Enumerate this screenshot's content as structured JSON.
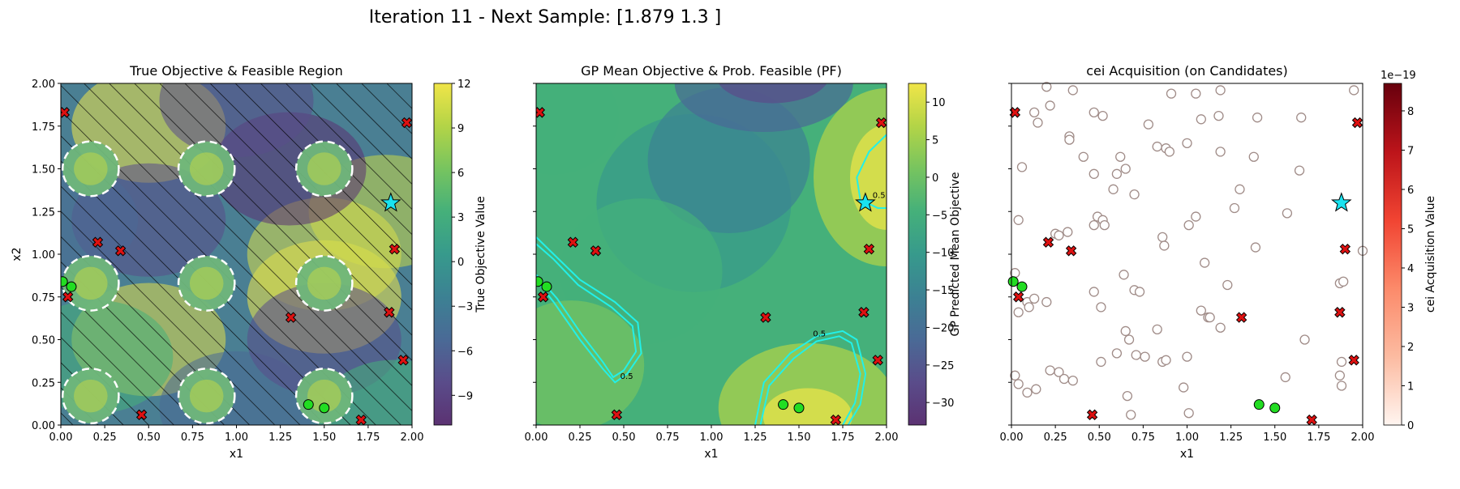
{
  "figure_title": "Iteration 11 - Next Sample: [1.879 1.3  ]",
  "colors": {
    "feasible_pt": "#22dd22",
    "infeasible_pt": "#dd1111",
    "next_sample": "#19e3f0",
    "candidate_edge": "#a08c88",
    "pf_contour": "#22f0e8",
    "hatch": "#000000"
  },
  "chart_data": [
    {
      "type": "heatmap",
      "title": "True Objective & Feasible Region",
      "xlabel": "x1",
      "ylabel": "x2",
      "xlim": [
        0,
        2
      ],
      "ylim": [
        0,
        2
      ],
      "xticks": [
        "0.00",
        "0.25",
        "0.50",
        "0.75",
        "1.00",
        "1.25",
        "1.50",
        "1.75",
        "2.00"
      ],
      "yticks": [
        "0.00",
        "0.25",
        "0.50",
        "0.75",
        "1.00",
        "1.25",
        "1.50",
        "1.75",
        "2.00"
      ],
      "colorbar": {
        "label": "True Objective Value",
        "range": [
          -11,
          12
        ],
        "ticks": [
          "12",
          "9",
          "6",
          "3",
          "0",
          "−3",
          "−6",
          "−9"
        ],
        "tick_values": [
          12,
          9,
          6,
          3,
          0,
          -3,
          -6,
          -9
        ],
        "colormap": "viridis"
      },
      "feasible_regions": [
        [
          0.17,
          1.5
        ],
        [
          0.83,
          1.5
        ],
        [
          1.5,
          1.5
        ],
        [
          0.17,
          0.83
        ],
        [
          0.83,
          0.83
        ],
        [
          1.5,
          0.83
        ],
        [
          0.17,
          0.17
        ],
        [
          0.83,
          0.17
        ],
        [
          1.5,
          0.17
        ]
      ],
      "feasible_radius": 0.16,
      "infeasible_hatched": true
    },
    {
      "type": "heatmap",
      "title": "GP Mean Objective & Prob. Feasible (PF)",
      "xlabel": "x1",
      "xlim": [
        0,
        2
      ],
      "ylim": [
        0,
        2
      ],
      "xticks": [
        "0.00",
        "0.25",
        "0.50",
        "0.75",
        "1.00",
        "1.25",
        "1.50",
        "1.75",
        "2.00"
      ],
      "colorbar": {
        "label": "GP Predicted Mean Objective",
        "range": [
          -33,
          12.5
        ],
        "ticks": [
          "10",
          "5",
          "0",
          "−5",
          "−10",
          "−15",
          "−20",
          "−25",
          "−30"
        ],
        "tick_values": [
          10,
          5,
          0,
          -5,
          -10,
          -15,
          -20,
          -25,
          -30
        ],
        "colormap": "viridis"
      },
      "pf_contour_labels": [
        "0.5",
        "0.5",
        "0.5"
      ]
    },
    {
      "type": "scatter",
      "title": "cei Acquisition (on Candidates)",
      "xlabel": "x1",
      "xlim": [
        0,
        2
      ],
      "ylim": [
        0,
        2
      ],
      "xticks": [
        "0.00",
        "0.25",
        "0.50",
        "0.75",
        "1.00",
        "1.25",
        "1.50",
        "1.75",
        "2.00"
      ],
      "colorbar": {
        "label": "cei Acquisition Value",
        "range": [
          0,
          8.7
        ],
        "ticks": [
          "8",
          "7",
          "6",
          "5",
          "4",
          "3",
          "2",
          "1",
          "0"
        ],
        "tick_values": [
          8,
          7,
          6,
          5,
          4,
          3,
          2,
          1,
          0
        ],
        "multiplier": "1e−19",
        "colormap": "Reds"
      },
      "candidates": [
        [
          0.2,
          1.98
        ],
        [
          0.35,
          1.96
        ],
        [
          0.22,
          1.87
        ],
        [
          0.47,
          1.83
        ],
        [
          0.52,
          1.81
        ],
        [
          0.91,
          1.94
        ],
        [
          1.05,
          1.94
        ],
        [
          1.19,
          1.96
        ],
        [
          1.08,
          1.79
        ],
        [
          1.18,
          1.81
        ],
        [
          1.4,
          1.8
        ],
        [
          1.65,
          1.8
        ],
        [
          1.95,
          1.96
        ],
        [
          0.13,
          1.83
        ],
        [
          0.15,
          1.77
        ],
        [
          0.33,
          1.69
        ],
        [
          0.33,
          1.67
        ],
        [
          0.78,
          1.76
        ],
        [
          0.06,
          1.51
        ],
        [
          0.41,
          1.57
        ],
        [
          0.47,
          1.47
        ],
        [
          0.62,
          1.57
        ],
        [
          0.6,
          1.47
        ],
        [
          0.65,
          1.5
        ],
        [
          0.83,
          1.63
        ],
        [
          0.88,
          1.62
        ],
        [
          0.9,
          1.6
        ],
        [
          1.0,
          1.65
        ],
        [
          1.19,
          1.6
        ],
        [
          1.38,
          1.57
        ],
        [
          1.64,
          1.49
        ],
        [
          1.3,
          1.38
        ],
        [
          1.27,
          1.27
        ],
        [
          1.57,
          1.24
        ],
        [
          0.58,
          1.38
        ],
        [
          0.7,
          1.35
        ],
        [
          0.04,
          1.2
        ],
        [
          0.32,
          1.13
        ],
        [
          0.47,
          1.17
        ],
        [
          0.49,
          1.22
        ],
        [
          0.52,
          1.2
        ],
        [
          0.53,
          1.17
        ],
        [
          0.25,
          1.12
        ],
        [
          0.27,
          1.11
        ],
        [
          0.86,
          1.1
        ],
        [
          0.87,
          1.05
        ],
        [
          1.01,
          1.17
        ],
        [
          1.05,
          1.22
        ],
        [
          1.1,
          0.95
        ],
        [
          1.39,
          1.04
        ],
        [
          1.87,
          0.83
        ],
        [
          1.89,
          0.84
        ],
        [
          2.0,
          1.02
        ],
        [
          0.02,
          0.89
        ],
        [
          0.09,
          0.72
        ],
        [
          0.1,
          0.69
        ],
        [
          0.13,
          0.74
        ],
        [
          0.2,
          0.72
        ],
        [
          0.04,
          0.66
        ],
        [
          0.47,
          0.78
        ],
        [
          0.51,
          0.69
        ],
        [
          0.64,
          0.88
        ],
        [
          0.7,
          0.79
        ],
        [
          0.73,
          0.78
        ],
        [
          1.08,
          0.67
        ],
        [
          1.12,
          0.63
        ],
        [
          1.13,
          0.63
        ],
        [
          1.19,
          0.57
        ],
        [
          1.23,
          0.82
        ],
        [
          0.65,
          0.55
        ],
        [
          0.67,
          0.5
        ],
        [
          0.83,
          0.56
        ],
        [
          0.6,
          0.42
        ],
        [
          0.71,
          0.41
        ],
        [
          0.76,
          0.4
        ],
        [
          0.86,
          0.37
        ],
        [
          0.88,
          0.38
        ],
        [
          1.0,
          0.4
        ],
        [
          1.67,
          0.5
        ],
        [
          0.51,
          0.37
        ],
        [
          0.02,
          0.29
        ],
        [
          0.04,
          0.24
        ],
        [
          0.14,
          0.21
        ],
        [
          0.09,
          0.19
        ],
        [
          0.22,
          0.32
        ],
        [
          0.27,
          0.31
        ],
        [
          0.3,
          0.27
        ],
        [
          0.35,
          0.26
        ],
        [
          0.66,
          0.17
        ],
        [
          0.68,
          0.06
        ],
        [
          0.98,
          0.22
        ],
        [
          1.01,
          0.07
        ],
        [
          1.56,
          0.28
        ],
        [
          1.88,
          0.37
        ],
        [
          1.87,
          0.29
        ],
        [
          1.88,
          0.23
        ]
      ]
    }
  ],
  "observations": {
    "feasible": [
      [
        0.01,
        0.84
      ],
      [
        0.06,
        0.81
      ],
      [
        1.41,
        0.12
      ],
      [
        1.5,
        0.1
      ]
    ],
    "infeasible": [
      [
        0.02,
        1.83
      ],
      [
        1.97,
        1.77
      ],
      [
        0.21,
        1.07
      ],
      [
        0.34,
        1.02
      ],
      [
        1.9,
        1.03
      ],
      [
        0.04,
        0.75
      ],
      [
        1.31,
        0.63
      ],
      [
        1.87,
        0.66
      ],
      [
        1.95,
        0.38
      ],
      [
        0.46,
        0.06
      ],
      [
        1.71,
        0.03
      ]
    ],
    "next_sample": [
      1.879,
      1.3
    ]
  }
}
